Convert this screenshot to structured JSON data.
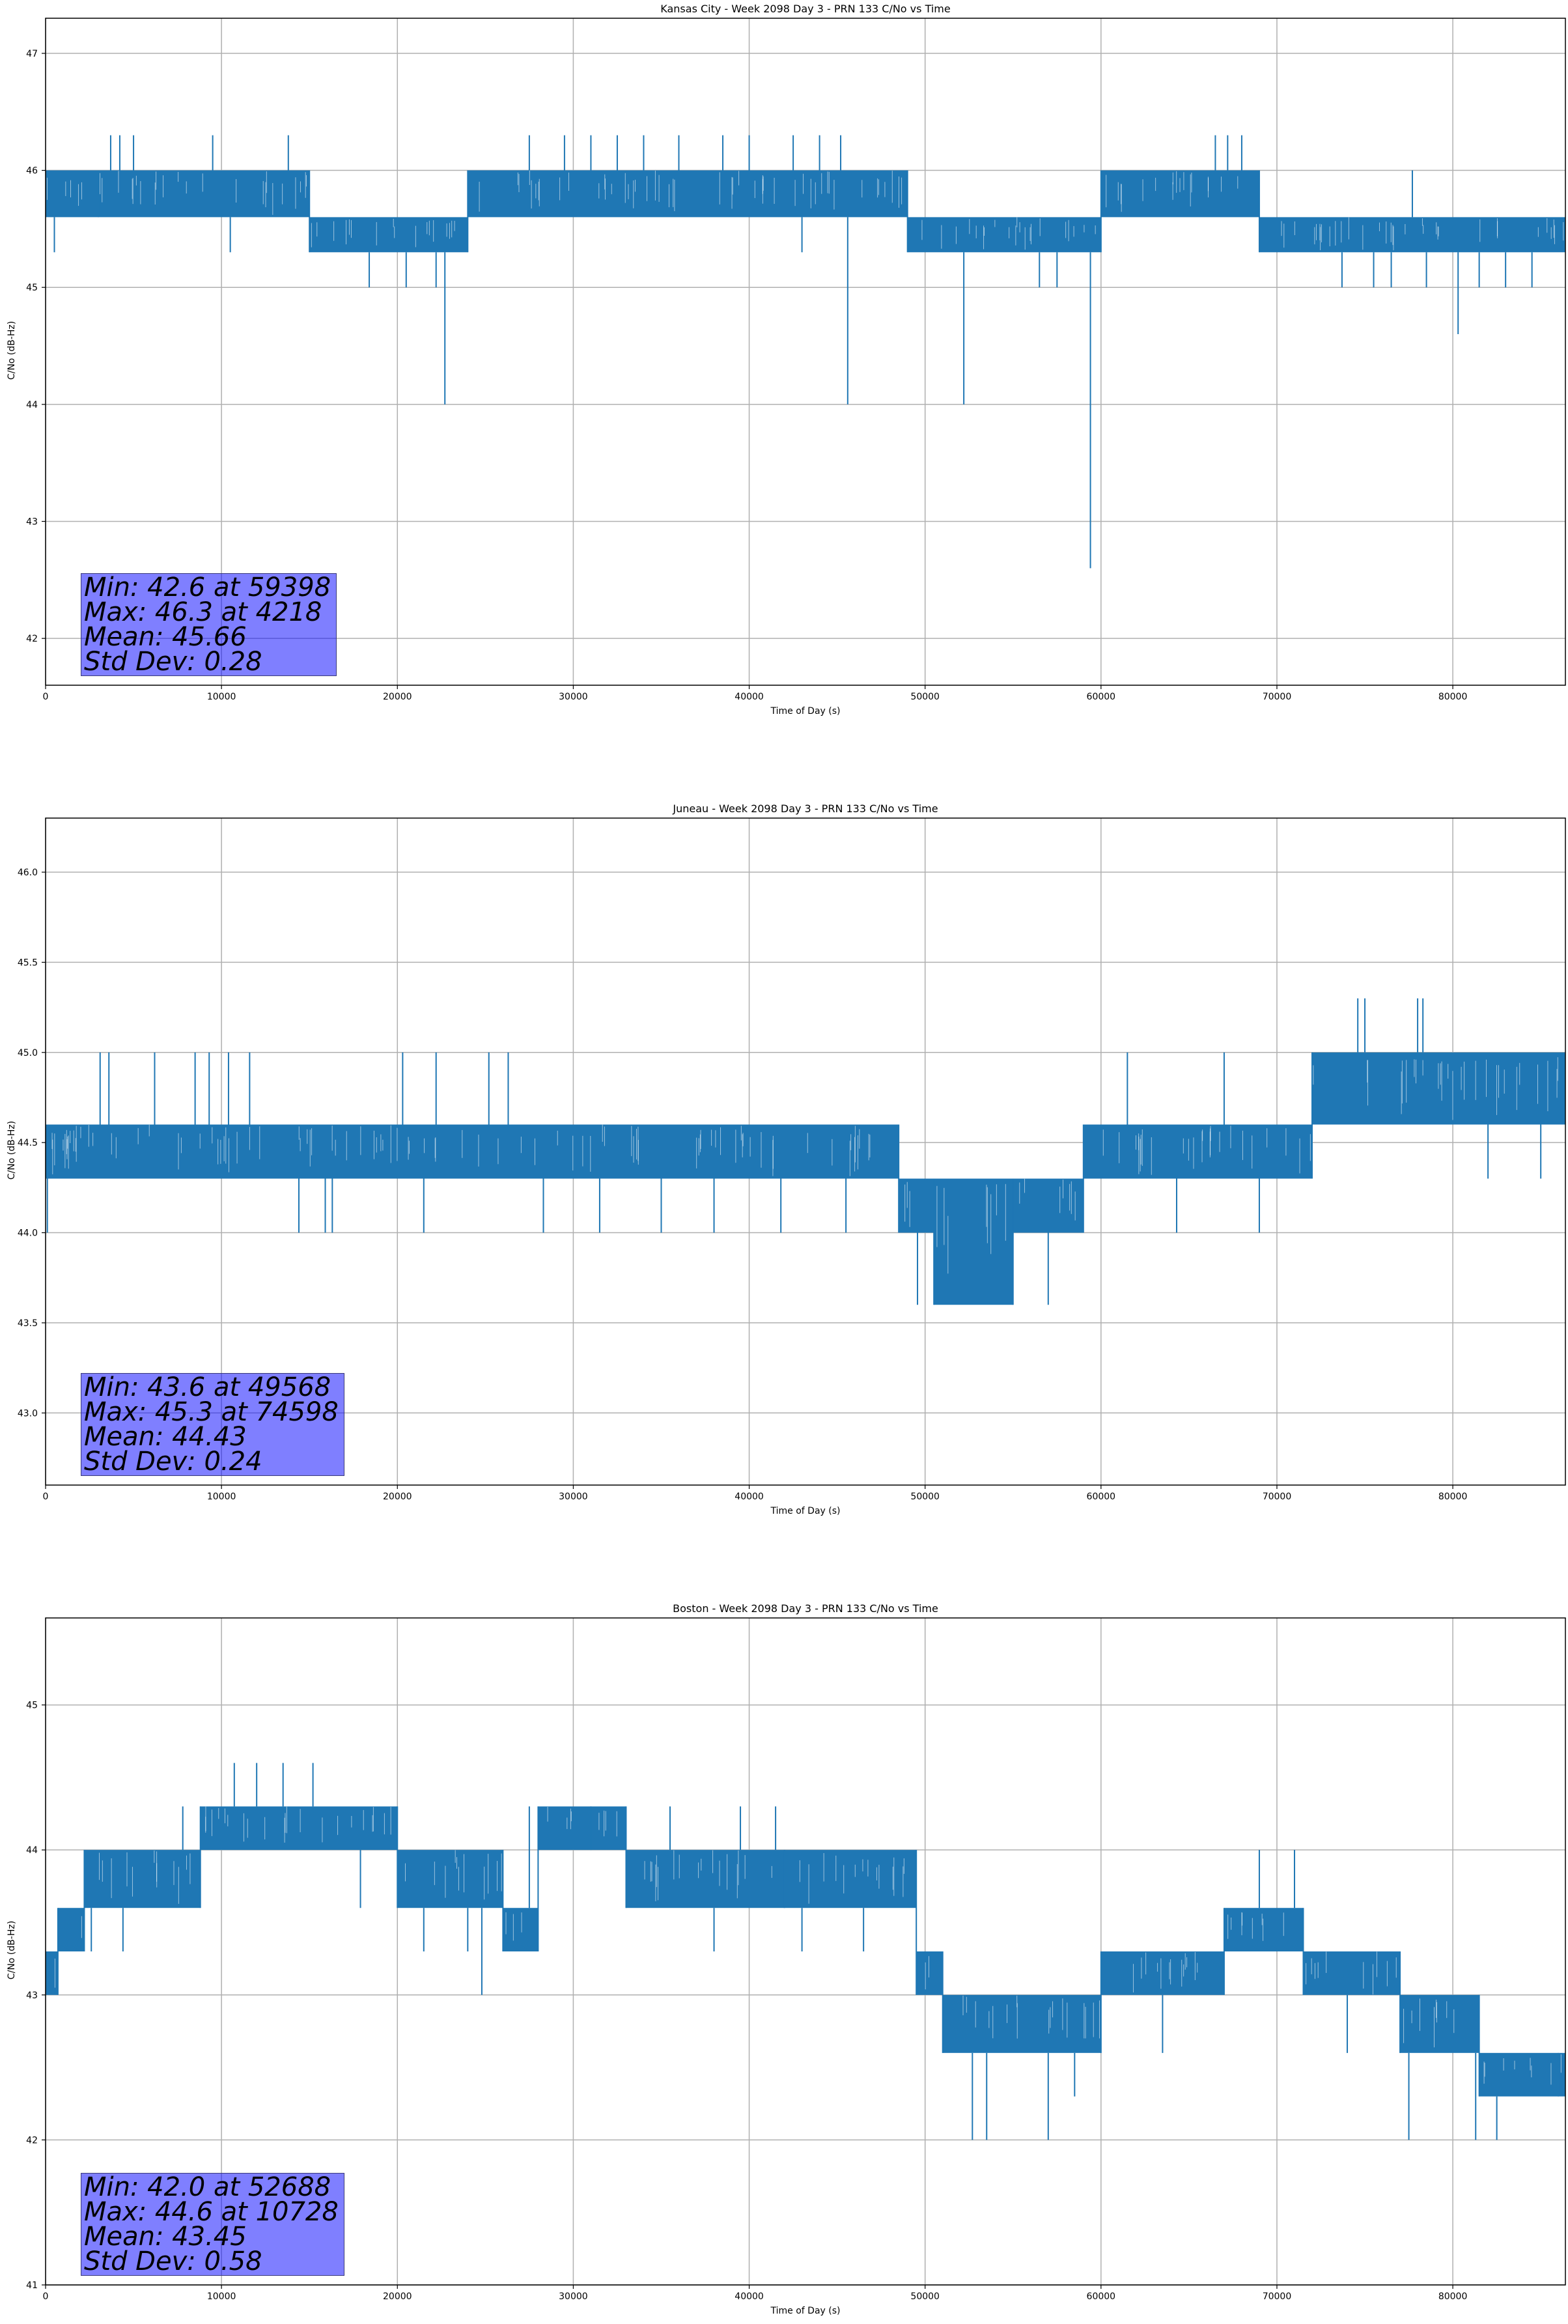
{
  "colors": {
    "series": "#1f77b4",
    "grid": "#b0b0b0",
    "stats_box": "#8080ff"
  },
  "chart_data": [
    {
      "type": "line",
      "title": "Kansas City - Week 2098 Day 3 - PRN 133 C/No vs Time",
      "xlabel": "Time of Day (s)",
      "ylabel": "C/No (dB-Hz)",
      "xlim": [
        0,
        86400
      ],
      "ylim": [
        41.6,
        47.3
      ],
      "xticks": [
        0,
        10000,
        20000,
        30000,
        40000,
        50000,
        60000,
        70000,
        80000
      ],
      "yticks": [
        42,
        43,
        44,
        45,
        46,
        47
      ],
      "ytick_labels": [
        "42",
        "43",
        "44",
        "45",
        "46",
        "47"
      ],
      "grid": true,
      "series_name": "C/No",
      "segments": [
        {
          "x0": 0,
          "x1": 3000,
          "lo": 45.6,
          "hi": 46.0
        },
        {
          "x0": 3000,
          "x1": 15000,
          "lo": 45.6,
          "hi": 46.0
        },
        {
          "x0": 15000,
          "x1": 24000,
          "lo": 45.3,
          "hi": 45.6
        },
        {
          "x0": 24000,
          "x1": 49000,
          "lo": 45.6,
          "hi": 46.0
        },
        {
          "x0": 49000,
          "x1": 60000,
          "lo": 45.3,
          "hi": 45.6
        },
        {
          "x0": 60000,
          "x1": 69000,
          "lo": 45.6,
          "hi": 46.0
        },
        {
          "x0": 69000,
          "x1": 86400,
          "lo": 45.3,
          "hi": 45.6
        }
      ],
      "spikes": [
        {
          "x": 500,
          "y": 45.3
        },
        {
          "x": 3700,
          "y": 46.3
        },
        {
          "x": 4218,
          "y": 46.3
        },
        {
          "x": 5000,
          "y": 46.3
        },
        {
          "x": 9500,
          "y": 46.3
        },
        {
          "x": 13800,
          "y": 46.3
        },
        {
          "x": 10500,
          "y": 45.3
        },
        {
          "x": 18400,
          "y": 45.0
        },
        {
          "x": 20500,
          "y": 45.0
        },
        {
          "x": 22700,
          "y": 44.0
        },
        {
          "x": 22200,
          "y": 45.0
        },
        {
          "x": 27500,
          "y": 46.3
        },
        {
          "x": 29500,
          "y": 46.3
        },
        {
          "x": 31000,
          "y": 46.3
        },
        {
          "x": 32500,
          "y": 46.3
        },
        {
          "x": 34000,
          "y": 46.3
        },
        {
          "x": 36000,
          "y": 46.3
        },
        {
          "x": 38500,
          "y": 46.3
        },
        {
          "x": 40000,
          "y": 46.3
        },
        {
          "x": 42500,
          "y": 46.3
        },
        {
          "x": 44000,
          "y": 46.3
        },
        {
          "x": 45200,
          "y": 46.3
        },
        {
          "x": 43000,
          "y": 45.3
        },
        {
          "x": 45600,
          "y": 44.0
        },
        {
          "x": 52200,
          "y": 44.0
        },
        {
          "x": 56500,
          "y": 45.0
        },
        {
          "x": 57500,
          "y": 45.0
        },
        {
          "x": 59398,
          "y": 42.6
        },
        {
          "x": 66500,
          "y": 46.3
        },
        {
          "x": 67200,
          "y": 46.3
        },
        {
          "x": 68000,
          "y": 46.3
        },
        {
          "x": 73700,
          "y": 45.0
        },
        {
          "x": 75500,
          "y": 45.0
        },
        {
          "x": 76500,
          "y": 45.0
        },
        {
          "x": 77700,
          "y": 46.0
        },
        {
          "x": 78500,
          "y": 45.0
        },
        {
          "x": 80300,
          "y": 44.6
        },
        {
          "x": 81500,
          "y": 45.0
        },
        {
          "x": 83000,
          "y": 45.0
        },
        {
          "x": 84500,
          "y": 45.0
        }
      ],
      "stats": [
        "Min: 42.6 at 59398",
        "Max: 46.3 at 4218",
        "Mean: 45.66",
        "Std Dev: 0.28"
      ]
    },
    {
      "type": "line",
      "title": "Juneau - Week 2098 Day 3 - PRN 133 C/No vs Time",
      "xlabel": "Time of Day (s)",
      "ylabel": "C/No (dB-Hz)",
      "xlim": [
        0,
        86400
      ],
      "ylim": [
        42.6,
        46.3
      ],
      "xticks": [
        0,
        10000,
        20000,
        30000,
        40000,
        50000,
        60000,
        70000,
        80000
      ],
      "yticks": [
        43.0,
        43.5,
        44.0,
        44.5,
        45.0,
        45.5,
        46.0
      ],
      "ytick_labels": [
        "43.0",
        "43.5",
        "44.0",
        "44.5",
        "45.0",
        "45.5",
        "46.0"
      ],
      "grid": true,
      "series_name": "C/No",
      "segments": [
        {
          "x0": 0,
          "x1": 48500,
          "lo": 44.3,
          "hi": 44.6
        },
        {
          "x0": 48500,
          "x1": 50500,
          "lo": 44.0,
          "hi": 44.3
        },
        {
          "x0": 50500,
          "x1": 55000,
          "lo": 43.6,
          "hi": 44.3
        },
        {
          "x0": 55000,
          "x1": 59000,
          "lo": 44.0,
          "hi": 44.3
        },
        {
          "x0": 59000,
          "x1": 72000,
          "lo": 44.3,
          "hi": 44.6
        },
        {
          "x0": 72000,
          "x1": 86400,
          "lo": 44.6,
          "hi": 45.0
        }
      ],
      "spikes": [
        {
          "x": 100,
          "y": 44.0
        },
        {
          "x": 3100,
          "y": 45.0
        },
        {
          "x": 3600,
          "y": 45.0
        },
        {
          "x": 6200,
          "y": 45.0
        },
        {
          "x": 8500,
          "y": 45.0
        },
        {
          "x": 9300,
          "y": 45.0
        },
        {
          "x": 10400,
          "y": 45.0
        },
        {
          "x": 11600,
          "y": 45.0
        },
        {
          "x": 14400,
          "y": 44.0
        },
        {
          "x": 15900,
          "y": 44.0
        },
        {
          "x": 16300,
          "y": 44.0
        },
        {
          "x": 20300,
          "y": 45.0
        },
        {
          "x": 21500,
          "y": 44.0
        },
        {
          "x": 22200,
          "y": 45.0
        },
        {
          "x": 25200,
          "y": 45.0
        },
        {
          "x": 26300,
          "y": 45.0
        },
        {
          "x": 28300,
          "y": 44.0
        },
        {
          "x": 31500,
          "y": 44.0
        },
        {
          "x": 35000,
          "y": 44.0
        },
        {
          "x": 38000,
          "y": 44.0
        },
        {
          "x": 41800,
          "y": 44.0
        },
        {
          "x": 45500,
          "y": 44.0
        },
        {
          "x": 49568,
          "y": 43.6
        },
        {
          "x": 53500,
          "y": 43.6
        },
        {
          "x": 57000,
          "y": 43.6
        },
        {
          "x": 61500,
          "y": 45.0
        },
        {
          "x": 64300,
          "y": 44.0
        },
        {
          "x": 67000,
          "y": 45.0
        },
        {
          "x": 69000,
          "y": 44.0
        },
        {
          "x": 74598,
          "y": 45.3
        },
        {
          "x": 75000,
          "y": 45.3
        },
        {
          "x": 78000,
          "y": 45.3
        },
        {
          "x": 78300,
          "y": 45.3
        },
        {
          "x": 82000,
          "y": 44.3
        },
        {
          "x": 85000,
          "y": 44.3
        }
      ],
      "stats": [
        "Min: 43.6 at 49568",
        "Max: 45.3 at 74598",
        "Mean: 44.43",
        "Std Dev: 0.24"
      ]
    },
    {
      "type": "line",
      "title": "Boston - Week 2098 Day 3 - PRN 133 C/No vs Time",
      "xlabel": "Time of Day (s)",
      "ylabel": "C/No (dB-Hz)",
      "xlim": [
        0,
        86400
      ],
      "ylim": [
        41.0,
        45.6
      ],
      "xticks": [
        0,
        10000,
        20000,
        30000,
        40000,
        50000,
        60000,
        70000,
        80000
      ],
      "yticks": [
        41,
        42,
        43,
        44,
        45
      ],
      "ytick_labels": [
        "41",
        "42",
        "43",
        "44",
        "45"
      ],
      "grid": true,
      "series_name": "C/No",
      "segments": [
        {
          "x0": 0,
          "x1": 700,
          "lo": 43.0,
          "hi": 43.3
        },
        {
          "x0": 700,
          "x1": 2200,
          "lo": 43.3,
          "hi": 43.6
        },
        {
          "x0": 2200,
          "x1": 8800,
          "lo": 43.6,
          "hi": 44.0
        },
        {
          "x0": 8800,
          "x1": 20000,
          "lo": 44.0,
          "hi": 44.3
        },
        {
          "x0": 20000,
          "x1": 26000,
          "lo": 43.6,
          "hi": 44.0
        },
        {
          "x0": 26000,
          "x1": 28000,
          "lo": 43.3,
          "hi": 43.6
        },
        {
          "x0": 28000,
          "x1": 33000,
          "lo": 44.0,
          "hi": 44.3
        },
        {
          "x0": 33000,
          "x1": 42000,
          "lo": 43.6,
          "hi": 44.0
        },
        {
          "x0": 42000,
          "x1": 49500,
          "lo": 43.6,
          "hi": 44.0
        },
        {
          "x0": 49500,
          "x1": 51000,
          "lo": 43.0,
          "hi": 43.3
        },
        {
          "x0": 51000,
          "x1": 60000,
          "lo": 42.6,
          "hi": 43.0
        },
        {
          "x0": 60000,
          "x1": 67000,
          "lo": 43.0,
          "hi": 43.3
        },
        {
          "x0": 67000,
          "x1": 71500,
          "lo": 43.3,
          "hi": 43.6
        },
        {
          "x0": 71500,
          "x1": 77000,
          "lo": 43.0,
          "hi": 43.3
        },
        {
          "x0": 77000,
          "x1": 81500,
          "lo": 42.6,
          "hi": 43.0
        },
        {
          "x0": 81500,
          "x1": 86400,
          "lo": 42.3,
          "hi": 42.6
        }
      ],
      "spikes": [
        {
          "x": 2600,
          "y": 43.3
        },
        {
          "x": 4400,
          "y": 43.3
        },
        {
          "x": 7800,
          "y": 44.3
        },
        {
          "x": 10728,
          "y": 44.6
        },
        {
          "x": 12000,
          "y": 44.6
        },
        {
          "x": 13500,
          "y": 44.6
        },
        {
          "x": 15200,
          "y": 44.6
        },
        {
          "x": 17900,
          "y": 43.6
        },
        {
          "x": 21500,
          "y": 43.3
        },
        {
          "x": 24000,
          "y": 43.3
        },
        {
          "x": 24800,
          "y": 43.0
        },
        {
          "x": 27500,
          "y": 44.3
        },
        {
          "x": 31000,
          "y": 44.3
        },
        {
          "x": 35500,
          "y": 44.3
        },
        {
          "x": 38000,
          "y": 43.3
        },
        {
          "x": 39500,
          "y": 44.3
        },
        {
          "x": 41500,
          "y": 44.3
        },
        {
          "x": 43000,
          "y": 43.3
        },
        {
          "x": 46500,
          "y": 43.3
        },
        {
          "x": 52688,
          "y": 42.0
        },
        {
          "x": 53500,
          "y": 42.0
        },
        {
          "x": 57000,
          "y": 42.0
        },
        {
          "x": 58500,
          "y": 42.3
        },
        {
          "x": 63500,
          "y": 42.6
        },
        {
          "x": 69000,
          "y": 44.0
        },
        {
          "x": 71000,
          "y": 44.0
        },
        {
          "x": 74000,
          "y": 42.6
        },
        {
          "x": 77500,
          "y": 42.0
        },
        {
          "x": 81300,
          "y": 42.0
        },
        {
          "x": 82500,
          "y": 42.0
        },
        {
          "x": 86000,
          "y": 42.6
        }
      ],
      "stats": [
        "Min: 42.0 at 52688",
        "Max: 44.6 at 10728",
        "Mean: 43.45",
        "Std Dev: 0.58"
      ]
    }
  ]
}
